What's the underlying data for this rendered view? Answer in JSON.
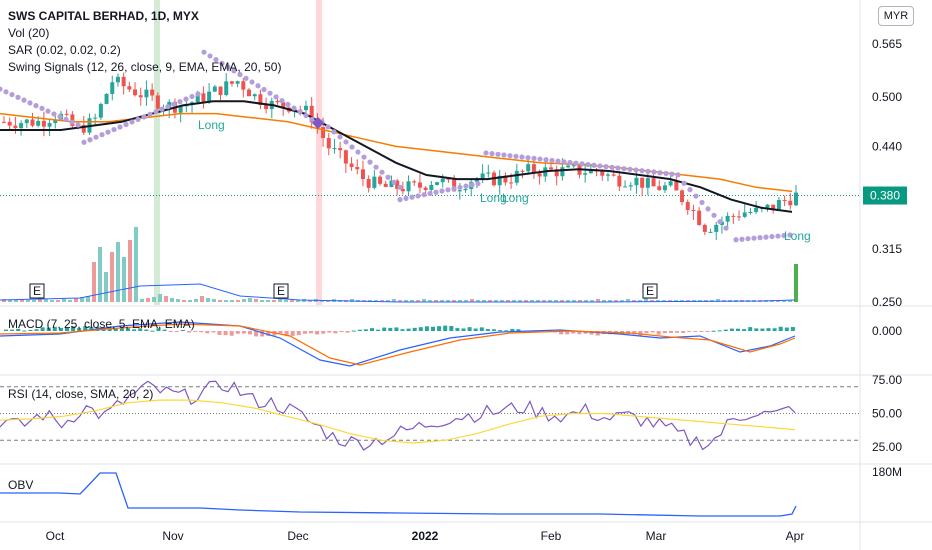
{
  "header": {
    "title": "SWS CAPITAL BERHAD, 1D, MYX",
    "currency": "MYR",
    "vol_label": "Vol (20)",
    "sar_label": "SAR (0.02, 0.02, 0.2)",
    "swing_label": "Swing Signals (12, 26, close, 9, EMA, EMA, 20, 50)"
  },
  "panes": {
    "macd_label": "MACD (7, 25, close, 5, EMA, EMA)",
    "rsi_label": "RSI (14, close, SMA, 20, 2)",
    "obv_label": "OBV"
  },
  "annotations": {
    "long": "Long",
    "earnings": "E"
  },
  "colors": {
    "up": "#26a69a",
    "down": "#ef5350",
    "ema_short": "#131722",
    "ema_long": "#f57c00",
    "sar": "#b39ddb",
    "macd": "#2962ff",
    "signal": "#ff6d00",
    "rsi": "#7e57c2",
    "rsi_ma": "#fdd835",
    "obv": "#2962ff",
    "last_price": "#089981"
  },
  "chart_data": [
    {
      "type": "candlestick",
      "title": "SWS CAPITAL BERHAD, 1D, MYX",
      "y_ticks": [
        "0.565",
        "0.500",
        "0.440",
        "0.380",
        "0.315",
        "0.250"
      ],
      "last_price": "0.380",
      "x_ticks": [
        "Oct",
        "Nov",
        "Dec",
        "2022",
        "Feb",
        "Mar",
        "Apr"
      ],
      "series": [
        {
          "name": "Price",
          "close_path": [
            0.47,
            0.47,
            0.47,
            0.48,
            0.46,
            0.47,
            0.52,
            0.51,
            0.5,
            0.49,
            0.49,
            0.5,
            0.51,
            0.52,
            0.5,
            0.49,
            0.49,
            0.48,
            0.44,
            0.42,
            0.4,
            0.39,
            0.39,
            0.39,
            0.4,
            0.39,
            0.4,
            0.4,
            0.4,
            0.41,
            0.41,
            0.41,
            0.41,
            0.41,
            0.4,
            0.4,
            0.39,
            0.39,
            0.37,
            0.34,
            0.35,
            0.36,
            0.36,
            0.37,
            0.38
          ]
        },
        {
          "name": "EMA 20",
          "values": [
            0.46,
            0.46,
            0.46,
            0.465,
            0.47,
            0.48,
            0.49,
            0.495,
            0.495,
            0.49,
            0.48,
            0.46,
            0.44,
            0.42,
            0.405,
            0.4,
            0.4,
            0.405,
            0.41,
            0.412,
            0.41,
            0.405,
            0.4,
            0.39,
            0.375,
            0.365,
            0.36
          ]
        },
        {
          "name": "EMA 50",
          "values": [
            0.48,
            0.475,
            0.47,
            0.47,
            0.475,
            0.48,
            0.48,
            0.475,
            0.47,
            0.46,
            0.45,
            0.44,
            0.435,
            0.43,
            0.425,
            0.42,
            0.418,
            0.415,
            0.41,
            0.405,
            0.4,
            0.39,
            0.385
          ]
        }
      ],
      "signals": [
        "Long",
        "Long",
        "Long",
        "Long"
      ]
    },
    {
      "type": "bar",
      "title": "MACD (7, 25, close, 5, EMA, EMA)",
      "y_ticks": [
        "0.000"
      ]
    },
    {
      "type": "line",
      "title": "RSI (14, close, SMA, 20, 2)",
      "y_ticks": [
        "75.00",
        "50.00",
        "25.00"
      ],
      "ylim": [
        0,
        100
      ],
      "series": [
        {
          "name": "RSI",
          "values": [
            45,
            40,
            50,
            42,
            55,
            48,
            60,
            70,
            65,
            62,
            68,
            72,
            60,
            58,
            52,
            42,
            32,
            28,
            30,
            35,
            40,
            45,
            48,
            50,
            52,
            55,
            50,
            48,
            52,
            46,
            48,
            44,
            38,
            30,
            28,
            45,
            52,
            48,
            55
          ]
        },
        {
          "name": "MA",
          "values": [
            45,
            46,
            48,
            52,
            58,
            60,
            60,
            58,
            54,
            48,
            42,
            35,
            30,
            28,
            30,
            35,
            42,
            48,
            50,
            50,
            48,
            46,
            44,
            42,
            40,
            38
          ]
        }
      ]
    },
    {
      "type": "line",
      "title": "OBV",
      "y_ticks": [
        "180M"
      ]
    }
  ]
}
